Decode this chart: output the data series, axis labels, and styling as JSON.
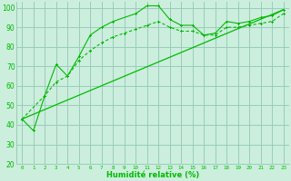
{
  "bg_color": "#cceedd",
  "grid_color": "#99ccbb",
  "line_color": "#00bb00",
  "xlabel": "Humidité relative (%)",
  "ylim": [
    20,
    103
  ],
  "xlim": [
    -0.5,
    23.5
  ],
  "yticks": [
    20,
    30,
    40,
    50,
    60,
    70,
    80,
    90,
    100
  ],
  "xticks": [
    0,
    1,
    2,
    3,
    4,
    5,
    6,
    7,
    8,
    9,
    10,
    11,
    12,
    13,
    14,
    15,
    16,
    17,
    18,
    19,
    20,
    21,
    22,
    23
  ],
  "line1_x": [
    0,
    1,
    2,
    3,
    4,
    5,
    6,
    7,
    8,
    10,
    11,
    12,
    13,
    14,
    15,
    16,
    17,
    18,
    19,
    20,
    21,
    22,
    23
  ],
  "line1_y": [
    43,
    37,
    55,
    71,
    65,
    75,
    86,
    90,
    93,
    97,
    101,
    101,
    94,
    91,
    91,
    86,
    87,
    93,
    92,
    93,
    95,
    96,
    99
  ],
  "line2_x": [
    0,
    2,
    3,
    4,
    5,
    6,
    7,
    8,
    9,
    10,
    11,
    12,
    13,
    14,
    15,
    16,
    17,
    18,
    19,
    20,
    21,
    22,
    23
  ],
  "line2_y": [
    43,
    55,
    62,
    65,
    73,
    78,
    82,
    85,
    87,
    89,
    91,
    93,
    90,
    88,
    88,
    86,
    86,
    90,
    90,
    91,
    92,
    93,
    97
  ],
  "line3_x": [
    0,
    23
  ],
  "line3_y": [
    43,
    99
  ]
}
